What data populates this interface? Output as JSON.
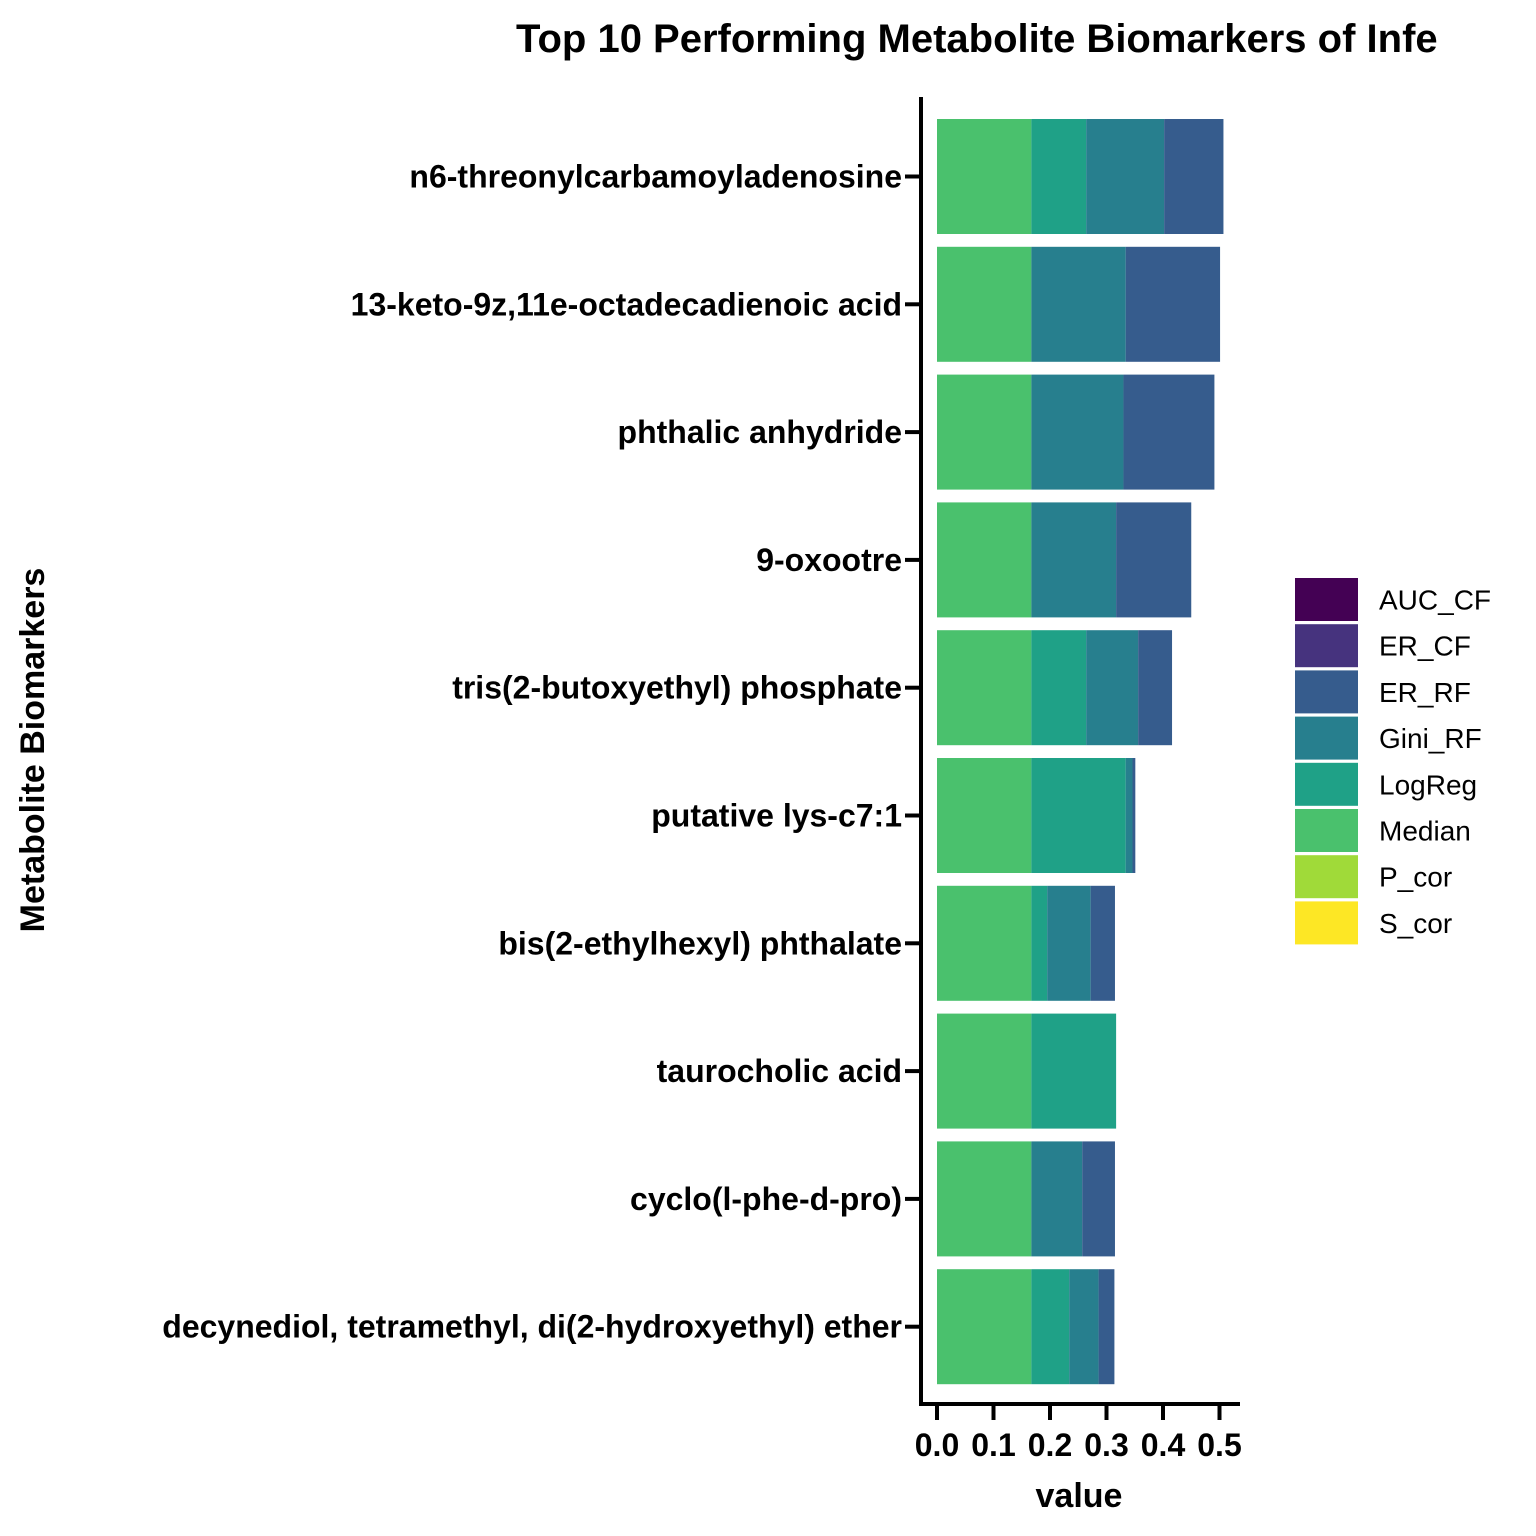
{
  "chart_data": {
    "type": "bar",
    "orientation": "horizontal",
    "stacked": true,
    "title": "Top 10 Performing Metabolite Biomarkers of Infe",
    "xlabel": "value",
    "ylabel": "Metabolite Biomarkers",
    "xlim": [
      0,
      0.5
    ],
    "xticks": [
      "0.0",
      "0.1",
      "0.2",
      "0.3",
      "0.4",
      "0.5"
    ],
    "grid": false,
    "legend_position": "right",
    "categories": [
      "n6-threonylcarbamoyladenosine",
      "13-keto-9z,11e-octadecadienoic acid",
      "phthalic anhydride",
      "9-oxootre",
      "tris(2-butoxyethyl) phosphate",
      "putative lys-c7:1",
      "bis(2-ethylhexyl) phthalate",
      "taurocholic acid",
      "cyclo(l-phe-d-pro)",
      "decynediol, tetramethyl, di(2-hydroxyethyl) ether"
    ],
    "series": [
      {
        "name": "AUC_CF",
        "color": "#440154",
        "values": [
          0,
          0,
          0,
          0,
          0,
          0,
          0,
          0,
          0,
          0
        ]
      },
      {
        "name": "ER_CF",
        "color": "#46337E",
        "values": [
          0,
          0,
          0,
          0,
          0,
          0,
          0,
          0,
          0,
          0
        ]
      },
      {
        "name": "ER_RF",
        "color": "#365C8D",
        "values": [
          0.105,
          0.167,
          0.161,
          0.133,
          0.06,
          0.005,
          0.043,
          0,
          0.058,
          0.028
        ]
      },
      {
        "name": "Gini_RF",
        "color": "#277F8E",
        "values": [
          0.138,
          0.167,
          0.163,
          0.15,
          0.092,
          0.012,
          0.077,
          0,
          0.09,
          0.052
        ]
      },
      {
        "name": "LogReg",
        "color": "#1FA187",
        "values": [
          0.097,
          0,
          0,
          0,
          0.097,
          0.167,
          0.028,
          0.15,
          0,
          0.067
        ]
      },
      {
        "name": "Median",
        "color": "#4AC16D",
        "values": [
          0.167,
          0.167,
          0.167,
          0.167,
          0.167,
          0.167,
          0.167,
          0.167,
          0.167,
          0.167
        ]
      },
      {
        "name": "P_cor",
        "color": "#A0DA39",
        "values": [
          0,
          0,
          0,
          0,
          0,
          0,
          0,
          0,
          0,
          0
        ]
      },
      {
        "name": "S_cor",
        "color": "#FDE725",
        "values": [
          0,
          0,
          0,
          0,
          0,
          0,
          0,
          0,
          0,
          0
        ]
      }
    ]
  }
}
